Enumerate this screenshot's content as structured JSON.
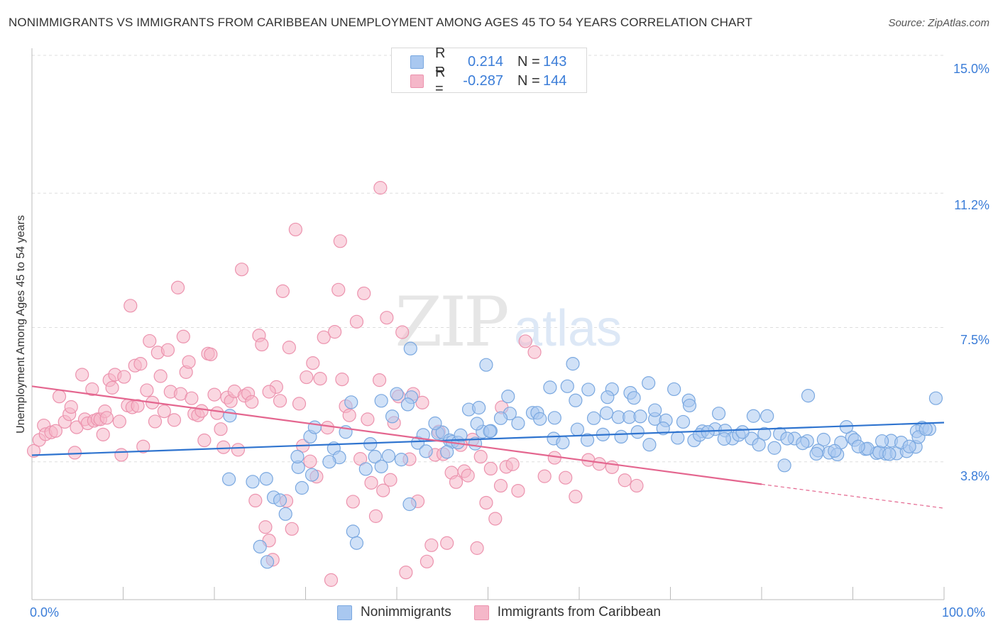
{
  "title": "NONIMMIGRANTS VS IMMIGRANTS FROM CARIBBEAN UNEMPLOYMENT AMONG AGES 45 TO 54 YEARS CORRELATION CHART",
  "source": "Source: ZipAtlas.com",
  "watermark": "ZIPatlas",
  "legend": {
    "rows": [
      {
        "r_label": "R =",
        "r_value": "0.214",
        "n_label": "N =",
        "n_value": "143"
      },
      {
        "r_label": "R =",
        "r_value": "-0.287",
        "n_label": "N =",
        "n_value": "144"
      }
    ]
  },
  "bottom_legend": [
    "Nonimmigrants",
    "Immigrants from Caribbean"
  ],
  "colors": {
    "blue_fill": "#a9c8f0",
    "blue_stroke": "#7aa8e0",
    "blue_line": "#2f74cf",
    "pink_fill": "#f5b7c9",
    "pink_stroke": "#ec93ae",
    "pink_line": "#e4668f",
    "tick_text": "#3b7dd8",
    "grid": "#dddddd"
  },
  "chart_data": {
    "type": "scatter",
    "xlabel": "",
    "ylabel": "Unemployment Among Ages 45 to 54 years",
    "xlim": [
      0,
      100
    ],
    "ylim": [
      0,
      15.0
    ],
    "x_tick_labels": [
      "0.0%",
      "100.0%"
    ],
    "y_ticks": [
      3.8,
      7.5,
      11.2,
      15.0
    ],
    "y_tick_labels": [
      "3.8%",
      "7.5%",
      "11.2%",
      "15.0%"
    ],
    "grid": "horizontal dashed",
    "series": [
      {
        "name": "Nonimmigrants",
        "r": 0.214,
        "n": 143,
        "trend": {
          "x0": 0,
          "y0": 3.98,
          "x1": 100,
          "y1": 4.88
        },
        "points": [
          [
            21.6,
            3.32
          ],
          [
            24.2,
            3.25
          ],
          [
            25.7,
            3.33
          ],
          [
            25.0,
            1.46
          ],
          [
            25.8,
            1.04
          ],
          [
            26.5,
            2.82
          ],
          [
            27.2,
            2.74
          ],
          [
            27.8,
            2.36
          ],
          [
            29.2,
            3.65
          ],
          [
            29.6,
            3.08
          ],
          [
            30.7,
            3.44
          ],
          [
            29.1,
            3.94
          ],
          [
            33.1,
            4.17
          ],
          [
            33.7,
            3.92
          ],
          [
            35.2,
            1.88
          ],
          [
            35.6,
            1.56
          ],
          [
            37.1,
            4.29
          ],
          [
            37.6,
            3.94
          ],
          [
            38.3,
            3.67
          ],
          [
            39.1,
            3.96
          ],
          [
            40.5,
            3.86
          ],
          [
            41.4,
            2.63
          ],
          [
            42.3,
            4.32
          ],
          [
            43.2,
            4.09
          ],
          [
            44.5,
            4.59
          ],
          [
            45.0,
            4.61
          ],
          [
            45.8,
            4.39
          ],
          [
            46.1,
            4.35
          ],
          [
            46.7,
            4.33
          ],
          [
            48.6,
            4.3
          ],
          [
            49.4,
            4.63
          ],
          [
            50.3,
            4.65
          ],
          [
            47.9,
            5.24
          ],
          [
            49.0,
            5.29
          ],
          [
            52.4,
            5.13
          ],
          [
            54.9,
            5.15
          ],
          [
            55.4,
            5.15
          ],
          [
            57.3,
            5.01
          ],
          [
            59.6,
            5.49
          ],
          [
            61.6,
            5.0
          ],
          [
            63.0,
            5.14
          ],
          [
            64.3,
            5.03
          ],
          [
            65.5,
            5.03
          ],
          [
            66.7,
            5.05
          ],
          [
            68.3,
            4.98
          ],
          [
            69.5,
            4.94
          ],
          [
            71.4,
            4.9
          ],
          [
            73.5,
            4.64
          ],
          [
            74.9,
            4.7
          ],
          [
            76.0,
            4.66
          ],
          [
            76.8,
            4.44
          ],
          [
            77.5,
            4.54
          ],
          [
            78.9,
            4.44
          ],
          [
            80.3,
            4.57
          ],
          [
            82.0,
            4.57
          ],
          [
            83.6,
            4.44
          ],
          [
            85.0,
            4.37
          ],
          [
            86.8,
            4.41
          ],
          [
            88.7,
            4.33
          ],
          [
            89.9,
            4.47
          ],
          [
            91.4,
            4.15
          ],
          [
            92.6,
            4.04
          ],
          [
            93.6,
            4.02
          ],
          [
            94.8,
            4.03
          ],
          [
            95.9,
            4.09
          ],
          [
            96.9,
            4.21
          ],
          [
            97.6,
            4.74
          ],
          [
            98.4,
            4.7
          ],
          [
            99.1,
            5.55
          ],
          [
            21.7,
            5.07
          ],
          [
            35.0,
            5.44
          ],
          [
            40.0,
            5.67
          ],
          [
            41.6,
            5.58
          ],
          [
            52.2,
            5.6
          ],
          [
            58.7,
            5.88
          ],
          [
            61.0,
            5.79
          ],
          [
            63.6,
            5.8
          ],
          [
            65.6,
            5.7
          ],
          [
            67.6,
            5.97
          ],
          [
            70.4,
            5.8
          ],
          [
            72.0,
            5.49
          ],
          [
            75.3,
            5.13
          ],
          [
            79.1,
            5.06
          ],
          [
            80.6,
            5.06
          ],
          [
            85.1,
            5.62
          ],
          [
            89.3,
            4.76
          ],
          [
            94.2,
            4.38
          ],
          [
            97.0,
            4.64
          ],
          [
            30.5,
            4.49
          ],
          [
            31.0,
            4.75
          ],
          [
            32.6,
            3.8
          ],
          [
            34.4,
            4.62
          ],
          [
            36.6,
            3.6
          ],
          [
            38.3,
            5.48
          ],
          [
            39.5,
            5.05
          ],
          [
            41.2,
            5.38
          ],
          [
            42.9,
            4.54
          ],
          [
            44.2,
            4.86
          ],
          [
            45.5,
            4.07
          ],
          [
            47.0,
            4.53
          ],
          [
            48.8,
            4.85
          ],
          [
            50.2,
            4.64
          ],
          [
            51.4,
            5.0
          ],
          [
            53.3,
            4.86
          ],
          [
            55.7,
            4.98
          ],
          [
            57.2,
            4.44
          ],
          [
            58.2,
            4.33
          ],
          [
            59.8,
            4.69
          ],
          [
            60.9,
            4.4
          ],
          [
            62.6,
            4.55
          ],
          [
            64.6,
            4.49
          ],
          [
            66.4,
            4.62
          ],
          [
            67.7,
            4.27
          ],
          [
            69.2,
            4.72
          ],
          [
            70.8,
            4.46
          ],
          [
            72.6,
            4.39
          ],
          [
            73.2,
            4.54
          ],
          [
            74.1,
            4.62
          ],
          [
            75.9,
            4.43
          ],
          [
            77.9,
            4.62
          ],
          [
            79.7,
            4.27
          ],
          [
            81.4,
            4.18
          ],
          [
            82.8,
            4.44
          ],
          [
            84.5,
            4.31
          ],
          [
            86.2,
            4.11
          ],
          [
            87.4,
            4.05
          ],
          [
            88.3,
            4.0
          ],
          [
            90.2,
            4.4
          ],
          [
            91.6,
            4.16
          ],
          [
            92.9,
            4.06
          ],
          [
            94.0,
            4.01
          ],
          [
            95.3,
            4.33
          ],
          [
            96.2,
            4.22
          ],
          [
            97.2,
            4.48
          ],
          [
            98.0,
            4.7
          ],
          [
            88.0,
            4.1
          ],
          [
            82.5,
            3.7
          ],
          [
            86.0,
            4.02
          ],
          [
            90.6,
            4.22
          ],
          [
            93.2,
            4.37
          ],
          [
            72.1,
            5.35
          ],
          [
            68.3,
            5.22
          ],
          [
            59.3,
            6.5
          ],
          [
            49.8,
            6.47
          ],
          [
            41.5,
            6.92
          ],
          [
            56.8,
            5.85
          ],
          [
            63.1,
            5.58
          ],
          [
            66.0,
            5.56
          ]
        ]
      },
      {
        "name": "Immigrants from Caribbean",
        "r": -0.287,
        "n": 144,
        "trend": {
          "x0": 0,
          "y0": 5.88,
          "x1": 80,
          "y1": 3.18,
          "dash_to_x": 100,
          "dash_to_y": 2.52
        },
        "points": [
          [
            0.2,
            4.1
          ],
          [
            0.8,
            4.4
          ],
          [
            1.3,
            4.8
          ],
          [
            1.5,
            4.56
          ],
          [
            2.1,
            4.61
          ],
          [
            2.6,
            4.65
          ],
          [
            3.0,
            5.6
          ],
          [
            3.6,
            4.9
          ],
          [
            4.1,
            5.11
          ],
          [
            4.3,
            5.31
          ],
          [
            4.7,
            4.05
          ],
          [
            4.9,
            4.75
          ],
          [
            5.5,
            6.2
          ],
          [
            5.8,
            4.97
          ],
          [
            6.1,
            4.86
          ],
          [
            6.6,
            5.8
          ],
          [
            6.8,
            4.93
          ],
          [
            7.2,
            4.97
          ],
          [
            7.5,
            4.97
          ],
          [
            7.8,
            4.55
          ],
          [
            8.0,
            5.19
          ],
          [
            8.2,
            5.01
          ],
          [
            8.5,
            6.05
          ],
          [
            8.8,
            5.84
          ],
          [
            9.1,
            6.2
          ],
          [
            9.6,
            4.91
          ],
          [
            9.8,
            3.99
          ],
          [
            10.1,
            6.14
          ],
          [
            10.5,
            5.35
          ],
          [
            10.8,
            8.1
          ],
          [
            11.0,
            5.3
          ],
          [
            11.3,
            6.45
          ],
          [
            11.6,
            5.34
          ],
          [
            11.9,
            6.5
          ],
          [
            12.2,
            4.22
          ],
          [
            12.6,
            5.77
          ],
          [
            12.9,
            7.13
          ],
          [
            13.2,
            5.43
          ],
          [
            13.5,
            4.91
          ],
          [
            13.8,
            6.81
          ],
          [
            14.1,
            6.16
          ],
          [
            14.5,
            5.19
          ],
          [
            14.9,
            6.88
          ],
          [
            15.2,
            5.73
          ],
          [
            15.6,
            4.95
          ],
          [
            16.0,
            8.6
          ],
          [
            16.3,
            5.67
          ],
          [
            16.6,
            7.25
          ],
          [
            16.9,
            6.27
          ],
          [
            17.2,
            6.55
          ],
          [
            17.5,
            5.55
          ],
          [
            17.8,
            5.12
          ],
          [
            18.2,
            5.08
          ],
          [
            18.6,
            5.2
          ],
          [
            18.9,
            4.39
          ],
          [
            19.3,
            6.78
          ],
          [
            19.6,
            6.76
          ],
          [
            20.0,
            5.65
          ],
          [
            20.3,
            5.14
          ],
          [
            20.7,
            4.7
          ],
          [
            21.0,
            4.2
          ],
          [
            21.4,
            5.57
          ],
          [
            21.8,
            5.47
          ],
          [
            22.2,
            5.74
          ],
          [
            22.6,
            4.13
          ],
          [
            23.0,
            9.1
          ],
          [
            23.3,
            5.62
          ],
          [
            23.7,
            5.68
          ],
          [
            24.1,
            5.45
          ],
          [
            24.5,
            2.73
          ],
          [
            24.9,
            7.28
          ],
          [
            25.2,
            7.03
          ],
          [
            25.6,
            2.0
          ],
          [
            26.0,
            1.63
          ],
          [
            26.4,
            1.1
          ],
          [
            26.8,
            5.86
          ],
          [
            27.2,
            5.48
          ],
          [
            27.5,
            8.5
          ],
          [
            27.9,
            2.72
          ],
          [
            28.2,
            6.95
          ],
          [
            28.5,
            1.95
          ],
          [
            28.9,
            10.2
          ],
          [
            29.3,
            5.4
          ],
          [
            29.7,
            4.24
          ],
          [
            30.1,
            6.13
          ],
          [
            30.5,
            3.81
          ],
          [
            30.8,
            6.52
          ],
          [
            31.2,
            3.39
          ],
          [
            31.6,
            6.09
          ],
          [
            32.0,
            7.23
          ],
          [
            32.4,
            4.74
          ],
          [
            32.8,
            0.54
          ],
          [
            33.2,
            7.38
          ],
          [
            33.6,
            8.54
          ],
          [
            34.0,
            6.07
          ],
          [
            34.4,
            5.33
          ],
          [
            34.8,
            5.08
          ],
          [
            35.2,
            2.7
          ],
          [
            35.6,
            7.66
          ],
          [
            36.0,
            3.88
          ],
          [
            36.4,
            8.44
          ],
          [
            36.8,
            4.97
          ],
          [
            37.2,
            3.22
          ],
          [
            37.7,
            2.3
          ],
          [
            38.1,
            6.05
          ],
          [
            38.5,
            3.01
          ],
          [
            38.9,
            7.77
          ],
          [
            39.3,
            3.3
          ],
          [
            39.7,
            4.87
          ],
          [
            40.2,
            5.6
          ],
          [
            40.6,
            7.37
          ],
          [
            41.0,
            0.75
          ],
          [
            41.4,
            3.87
          ],
          [
            41.8,
            5.67
          ],
          [
            42.3,
            2.71
          ],
          [
            42.8,
            5.43
          ],
          [
            43.3,
            1.05
          ],
          [
            43.8,
            1.5
          ],
          [
            44.2,
            3.99
          ],
          [
            44.6,
            4.63
          ],
          [
            45.1,
            4.01
          ],
          [
            45.5,
            1.56
          ],
          [
            46.0,
            3.5
          ],
          [
            46.5,
            3.24
          ],
          [
            47.0,
            4.26
          ],
          [
            47.4,
            3.54
          ],
          [
            47.8,
            3.42
          ],
          [
            48.3,
            4.41
          ],
          [
            48.8,
            1.42
          ],
          [
            49.2,
            3.94
          ],
          [
            49.8,
            2.67
          ],
          [
            50.3,
            3.61
          ],
          [
            50.8,
            2.23
          ],
          [
            51.4,
            3.14
          ],
          [
            52.0,
            3.66
          ],
          [
            52.7,
            3.73
          ],
          [
            53.3,
            3.0
          ],
          [
            54.1,
            7.12
          ],
          [
            55.1,
            6.82
          ],
          [
            56.2,
            3.4
          ],
          [
            57.3,
            3.91
          ],
          [
            58.5,
            3.36
          ],
          [
            59.6,
            2.84
          ],
          [
            61.0,
            3.85
          ],
          [
            62.2,
            3.74
          ],
          [
            63.6,
            3.65
          ],
          [
            65.0,
            3.29
          ],
          [
            66.3,
            3.14
          ],
          [
            26.0,
            5.73
          ],
          [
            33.8,
            9.88
          ],
          [
            38.2,
            11.35
          ],
          [
            51.5,
            5.3
          ]
        ]
      }
    ]
  }
}
